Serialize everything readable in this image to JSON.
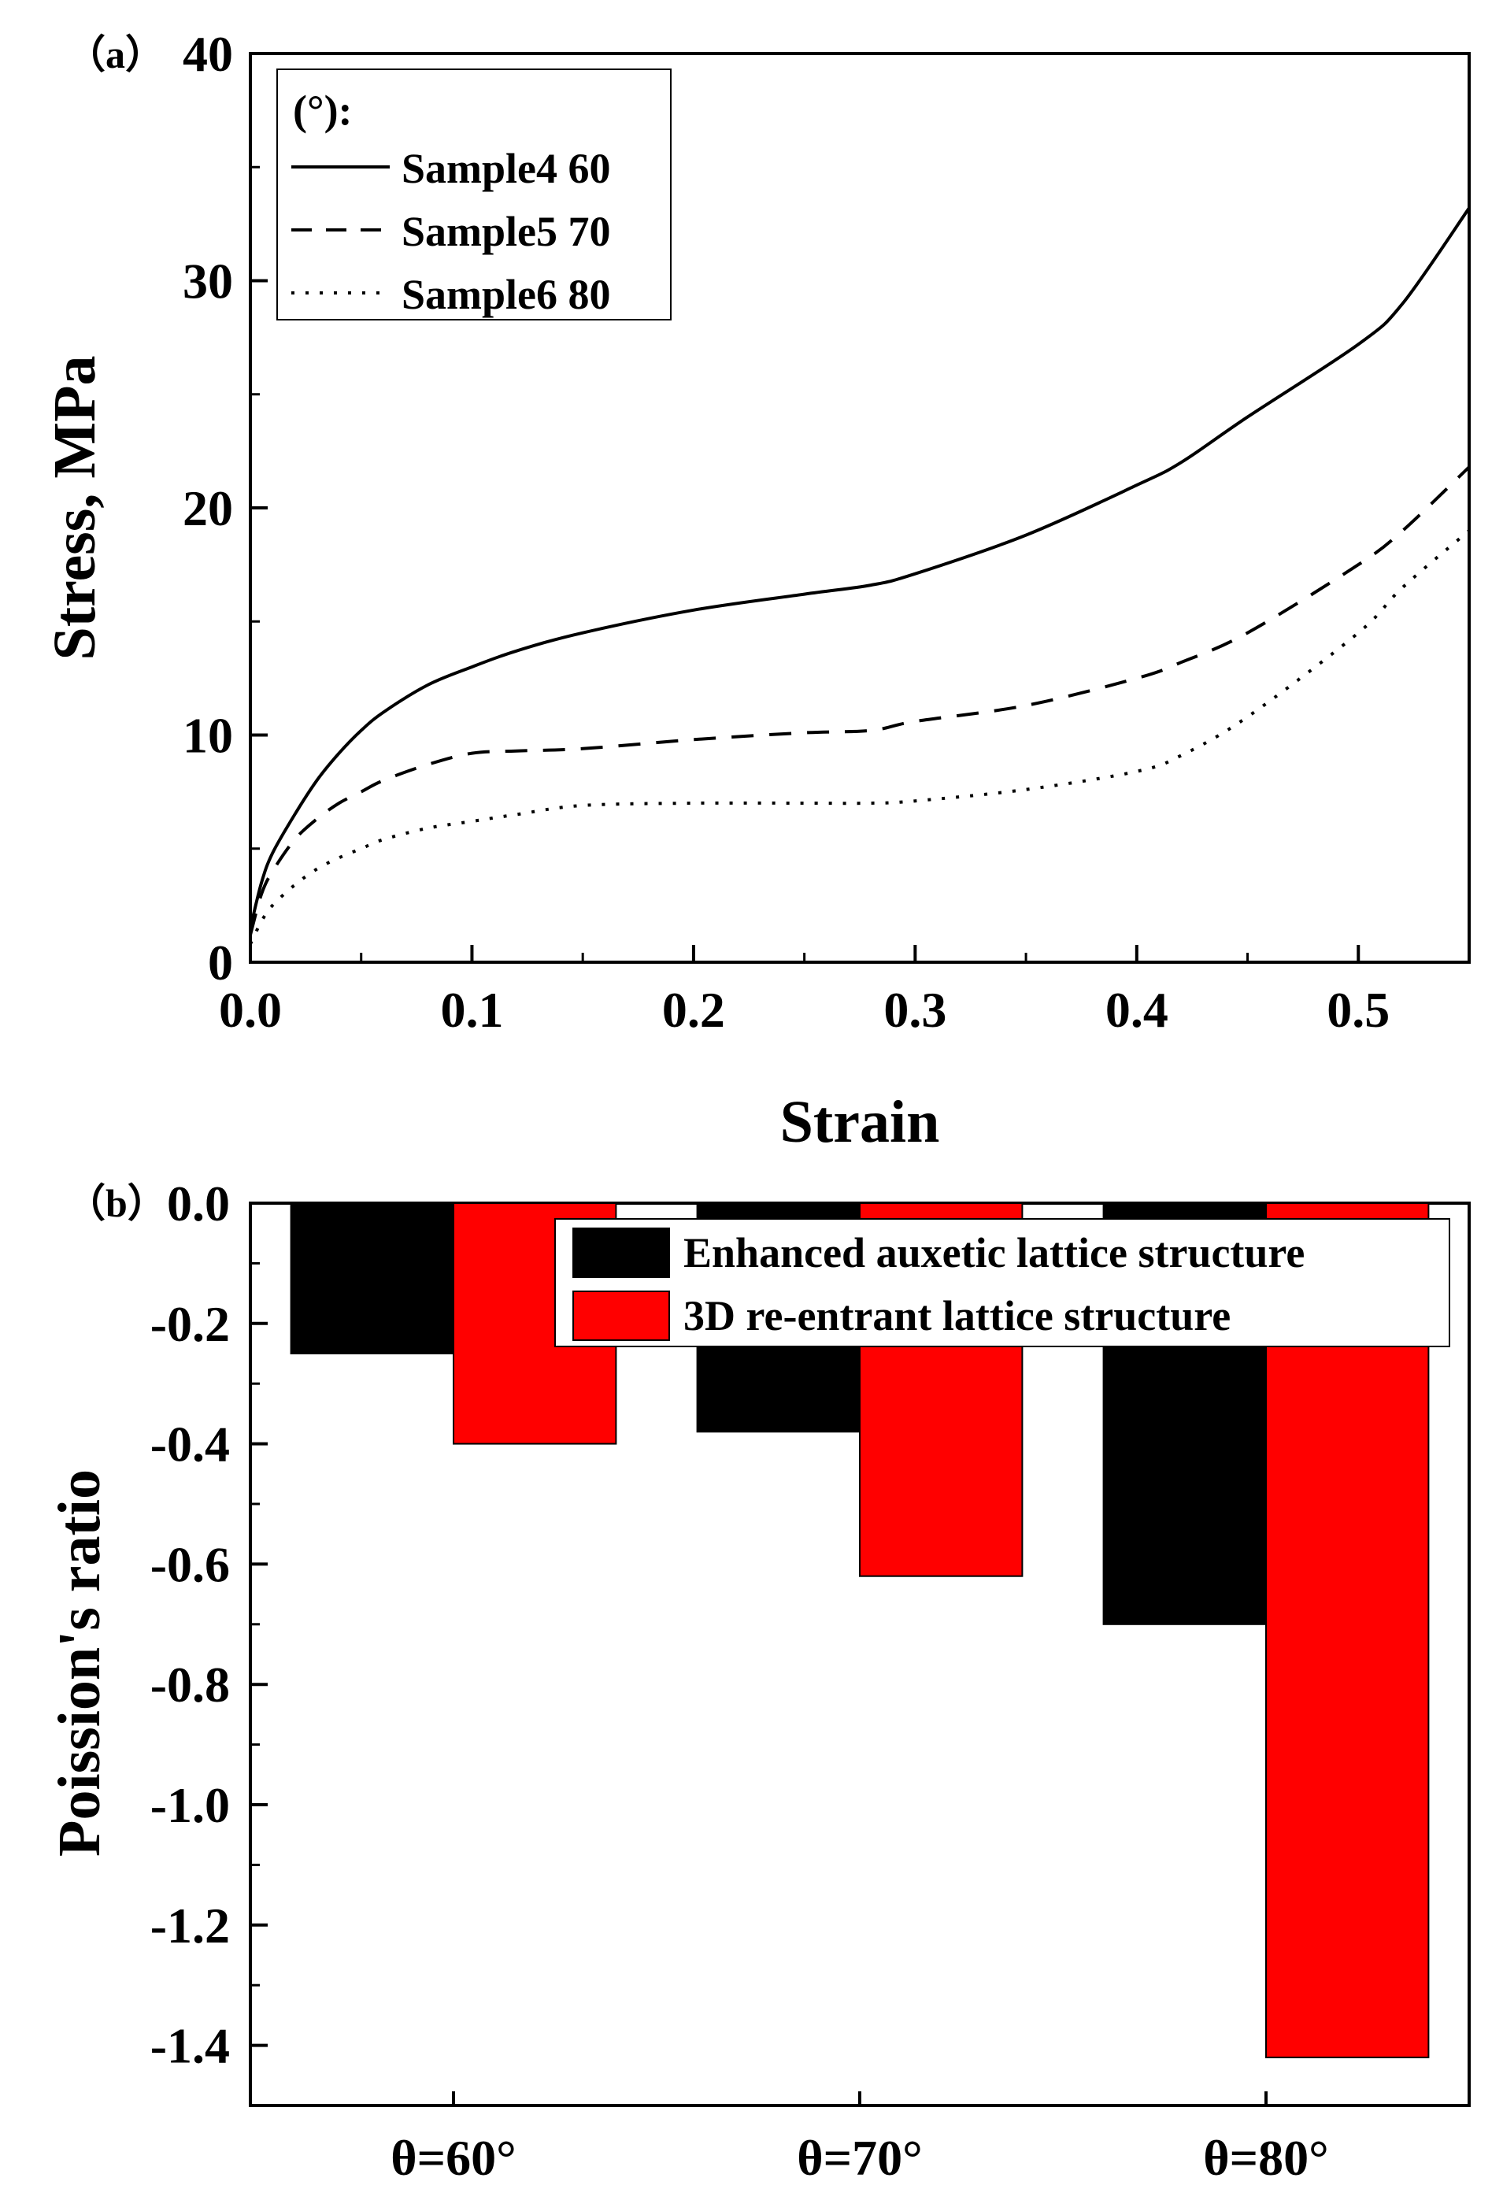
{
  "chart_data": [
    {
      "type": "line",
      "panel_label": "（a）",
      "xlabel": "Strain",
      "ylabel": "Stress, MPa",
      "xlim": [
        0,
        0.55
      ],
      "ylim": [
        0,
        40
      ],
      "xticks": [
        "0.0",
        "0.1",
        "0.2",
        "0.3",
        "0.4",
        "0.5"
      ],
      "yticks": [
        "0",
        "10",
        "20",
        "30",
        "40"
      ],
      "grid": false,
      "legend_title": "(°):",
      "legend_position": "top-left",
      "series": [
        {
          "name": "Sample4 60",
          "style": "solid",
          "x": [
            0,
            0.005,
            0.01,
            0.02,
            0.03,
            0.04,
            0.05,
            0.06,
            0.08,
            0.1,
            0.12,
            0.15,
            0.2,
            0.25,
            0.28,
            0.3,
            0.35,
            0.4,
            0.42,
            0.45,
            0.5,
            0.52,
            0.55
          ],
          "y": [
            1.5,
            3.5,
            4.8,
            6.5,
            8.0,
            9.2,
            10.2,
            11.0,
            12.2,
            13.0,
            13.7,
            14.5,
            15.5,
            16.2,
            16.6,
            17.1,
            18.8,
            21.0,
            22.0,
            24.0,
            27.2,
            29.0,
            33.2
          ]
        },
        {
          "name": "Sample5 70",
          "style": "dashed",
          "x": [
            0,
            0.005,
            0.01,
            0.02,
            0.03,
            0.04,
            0.05,
            0.06,
            0.08,
            0.1,
            0.12,
            0.15,
            0.2,
            0.25,
            0.28,
            0.3,
            0.35,
            0.4,
            0.42,
            0.45,
            0.5,
            0.52,
            0.55
          ],
          "y": [
            1.2,
            3.0,
            4.0,
            5.4,
            6.3,
            7.0,
            7.5,
            8.0,
            8.7,
            9.2,
            9.3,
            9.4,
            9.8,
            10.1,
            10.2,
            10.6,
            11.3,
            12.5,
            13.2,
            14.5,
            17.5,
            19.0,
            21.8
          ]
        },
        {
          "name": "Sample6 80",
          "style": "dotted",
          "x": [
            0,
            0.005,
            0.01,
            0.02,
            0.03,
            0.04,
            0.05,
            0.06,
            0.08,
            0.1,
            0.12,
            0.15,
            0.2,
            0.25,
            0.28,
            0.3,
            0.35,
            0.4,
            0.42,
            0.45,
            0.5,
            0.52,
            0.55
          ],
          "y": [
            0.8,
            1.8,
            2.5,
            3.4,
            4.1,
            4.6,
            5.0,
            5.4,
            5.9,
            6.2,
            6.5,
            6.9,
            7.0,
            7.0,
            7.0,
            7.1,
            7.6,
            8.4,
            9.1,
            10.8,
            14.5,
            16.5,
            19.0
          ]
        }
      ]
    },
    {
      "type": "bar",
      "panel_label": "（b）",
      "xlabel": "",
      "ylabel": "Poission's ratio",
      "ylim": [
        -1.5,
        0
      ],
      "yticks": [
        "0.0",
        "-0.2",
        "-0.4",
        "-0.6",
        "-0.8",
        "-1.0",
        "-1.2",
        "-1.4"
      ],
      "grid": false,
      "legend_position": "top-right",
      "categories": [
        "θ=60°",
        "θ=70°",
        "θ=80°"
      ],
      "series": [
        {
          "name": "Enhanced auxetic lattice structure",
          "color": "#000000",
          "values": [
            -0.25,
            -0.38,
            -0.7
          ]
        },
        {
          "name": "3D re-entrant lattice structure",
          "color": "#ff0000",
          "values": [
            -0.4,
            -0.62,
            -1.42
          ]
        }
      ]
    }
  ]
}
